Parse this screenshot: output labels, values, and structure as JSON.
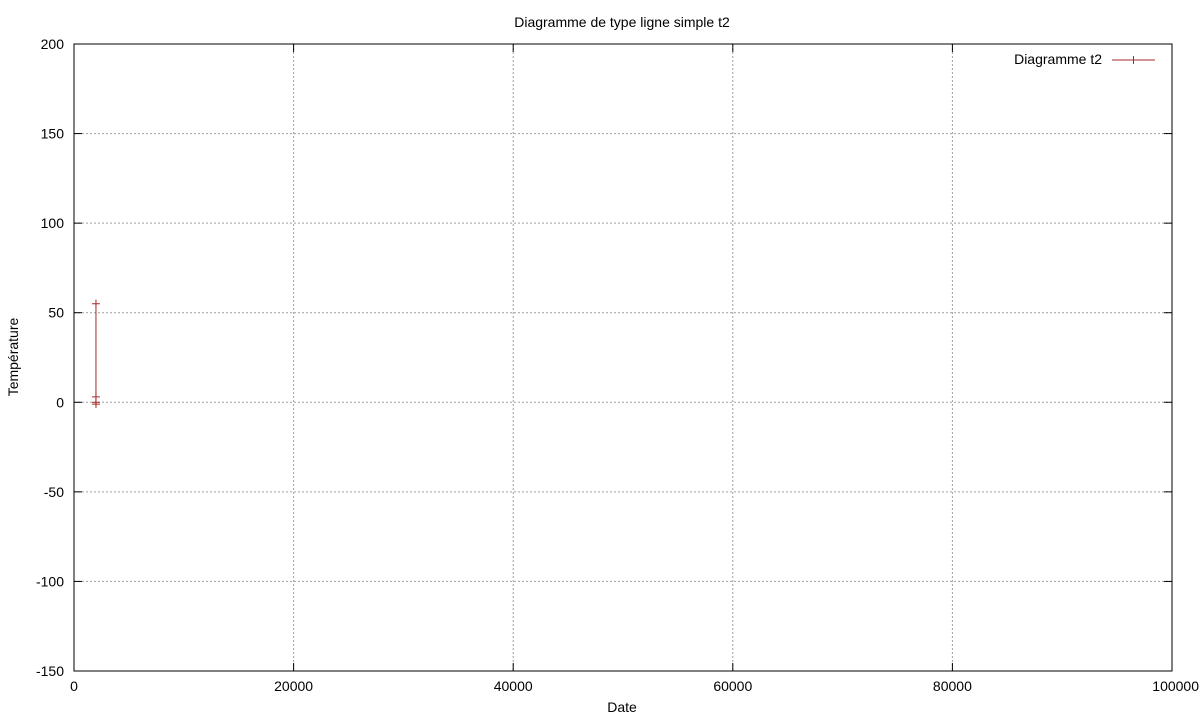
{
  "chart_data": {
    "type": "line",
    "title": "Diagramme de type ligne simple t2",
    "xlabel": "Date",
    "ylabel": "Température",
    "xlim": [
      0,
      100000
    ],
    "ylim": [
      -150,
      200
    ],
    "x_ticks": [
      0,
      20000,
      40000,
      60000,
      80000,
      100000
    ],
    "y_ticks": [
      -150,
      -100,
      -50,
      0,
      50,
      100,
      150,
      200
    ],
    "grid": true,
    "legend_position": "top-right",
    "series": [
      {
        "name": "Diagramme t2",
        "color": "#a52a2a",
        "marker": "plus",
        "x": [
          2000,
          2000,
          2000,
          2000
        ],
        "y": [
          55,
          3,
          0,
          -1
        ]
      }
    ]
  }
}
